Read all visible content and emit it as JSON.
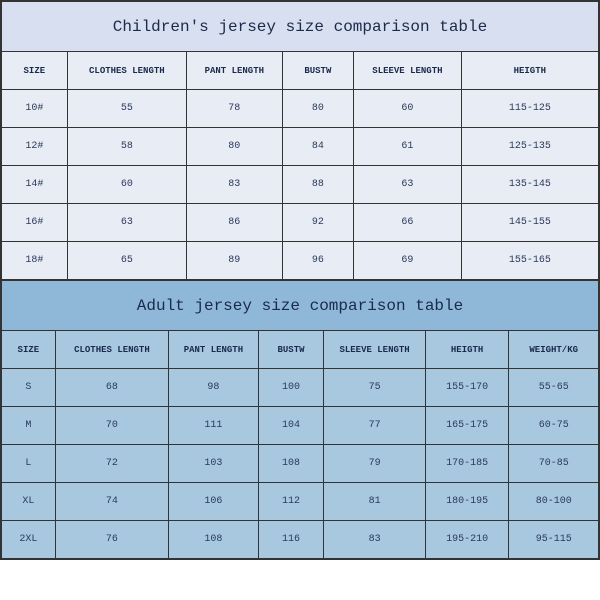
{
  "children": {
    "title": "Children's jersey size comparison table",
    "columns": [
      "SIZE",
      "CLOTHES LENGTH",
      "PANT LENGTH",
      "BUSTW",
      "SLEEVE LENGTH",
      "HEIGTH"
    ],
    "col_widths": [
      "11%",
      "20%",
      "16%",
      "12%",
      "18%",
      "23%"
    ],
    "rows": [
      [
        "10#",
        "55",
        "78",
        "80",
        "60",
        "115-125"
      ],
      [
        "12#",
        "58",
        "80",
        "84",
        "61",
        "125-135"
      ],
      [
        "14#",
        "60",
        "83",
        "88",
        "63",
        "135-145"
      ],
      [
        "16#",
        "63",
        "86",
        "92",
        "66",
        "145-155"
      ],
      [
        "18#",
        "65",
        "89",
        "96",
        "69",
        "155-165"
      ]
    ],
    "title_bg": "#d8dff0",
    "cell_bg": "#e8ecf5",
    "text_color": "#1a2a4a"
  },
  "adult": {
    "title": "Adult jersey size comparison table",
    "columns": [
      "SIZE",
      "CLOTHES LENGTH",
      "PANT LENGTH",
      "BUSTW",
      "SLEEVE LENGTH",
      "HEIGTH",
      "WEIGHT/KG"
    ],
    "col_widths": [
      "9%",
      "19%",
      "15%",
      "11%",
      "17%",
      "14%",
      "15%"
    ],
    "rows": [
      [
        "S",
        "68",
        "98",
        "100",
        "75",
        "155-170",
        "55-65"
      ],
      [
        "M",
        "70",
        "111",
        "104",
        "77",
        "165-175",
        "60-75"
      ],
      [
        "L",
        "72",
        "103",
        "108",
        "79",
        "170-185",
        "70-85"
      ],
      [
        "XL",
        "74",
        "106",
        "112",
        "81",
        "180-195",
        "80-100"
      ],
      [
        "2XL",
        "76",
        "108",
        "116",
        "83",
        "195-210",
        "95-115"
      ]
    ],
    "title_bg": "#8fb8d8",
    "cell_bg": "#a8c8e0",
    "text_color": "#1a2a4a"
  }
}
